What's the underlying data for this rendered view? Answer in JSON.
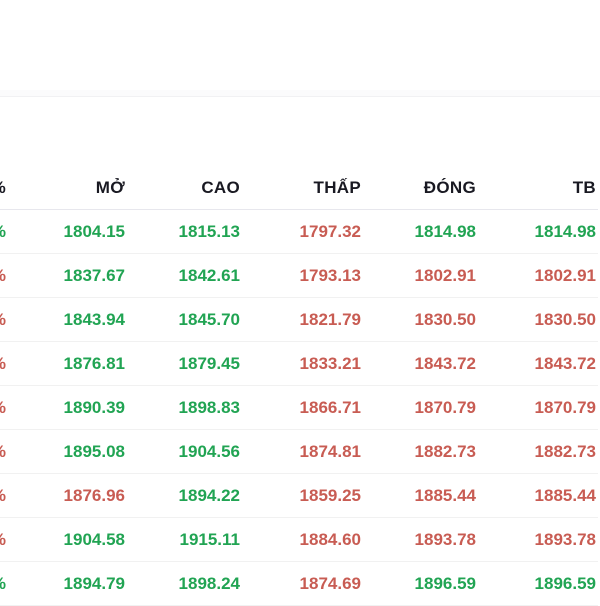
{
  "table": {
    "columns": [
      {
        "key": "percent",
        "label": "%"
      },
      {
        "key": "open",
        "label": "MỞ"
      },
      {
        "key": "high",
        "label": "CAO"
      },
      {
        "key": "low",
        "label": "THẤP"
      },
      {
        "key": "close",
        "label": "ĐÓNG"
      },
      {
        "key": "average",
        "label": "TB"
      }
    ],
    "rows": [
      {
        "values": [
          "%",
          "1804.15",
          "1815.13",
          "1797.32",
          "1814.98",
          "1814.98"
        ],
        "colors": [
          "green",
          "green",
          "green",
          "red",
          "green",
          "green"
        ]
      },
      {
        "values": [
          "%",
          "1837.67",
          "1842.61",
          "1793.13",
          "1802.91",
          "1802.91"
        ],
        "colors": [
          "red",
          "green",
          "green",
          "red",
          "red",
          "red"
        ]
      },
      {
        "values": [
          "%",
          "1843.94",
          "1845.70",
          "1821.79",
          "1830.50",
          "1830.50"
        ],
        "colors": [
          "red",
          "green",
          "green",
          "red",
          "red",
          "red"
        ]
      },
      {
        "values": [
          "%",
          "1876.81",
          "1879.45",
          "1833.21",
          "1843.72",
          "1843.72"
        ],
        "colors": [
          "red",
          "green",
          "green",
          "red",
          "red",
          "red"
        ]
      },
      {
        "values": [
          "%",
          "1890.39",
          "1898.83",
          "1866.71",
          "1870.79",
          "1870.79"
        ],
        "colors": [
          "red",
          "green",
          "green",
          "red",
          "red",
          "red"
        ]
      },
      {
        "values": [
          "%",
          "1895.08",
          "1904.56",
          "1874.81",
          "1882.73",
          "1882.73"
        ],
        "colors": [
          "red",
          "green",
          "green",
          "red",
          "red",
          "red"
        ]
      },
      {
        "values": [
          "%",
          "1876.96",
          "1894.22",
          "1859.25",
          "1885.44",
          "1885.44"
        ],
        "colors": [
          "red",
          "red",
          "green",
          "red",
          "red",
          "red"
        ]
      },
      {
        "values": [
          "%",
          "1904.58",
          "1915.11",
          "1884.60",
          "1893.78",
          "1893.78"
        ],
        "colors": [
          "red",
          "green",
          "green",
          "red",
          "red",
          "red"
        ]
      },
      {
        "values": [
          "%",
          "1894.79",
          "1898.24",
          "1874.69",
          "1896.59",
          "1896.59"
        ],
        "colors": [
          "green",
          "green",
          "green",
          "red",
          "green",
          "green"
        ]
      }
    ]
  },
  "colors": {
    "green": "#21a453",
    "red": "#c85c53",
    "header_text": "#191922"
  }
}
